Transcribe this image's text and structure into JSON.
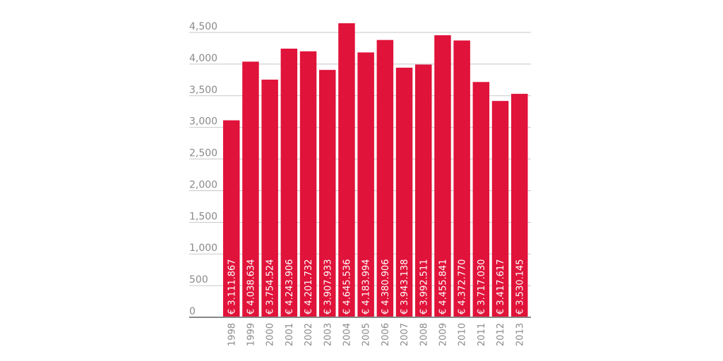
{
  "chart_data": {
    "type": "bar",
    "categories": [
      "1998",
      "1999",
      "2000",
      "2001",
      "2002",
      "2003",
      "2004",
      "2005",
      "2006",
      "2007",
      "2008",
      "2009",
      "2010",
      "2011",
      "2012",
      "2013"
    ],
    "values": [
      3111.867,
      4038.634,
      3754.524,
      4243.906,
      4201.732,
      3907.933,
      4645.536,
      4183.994,
      4380.906,
      3943.138,
      3992.511,
      4455.841,
      4372.77,
      3717.03,
      3417.617,
      3530.145
    ],
    "data_labels": [
      "€ 3.111.867",
      "€ 4.038.634",
      "€ 3.754.524",
      "€ 4.243.906",
      "€ 4.201.732",
      "€ 3.907.933",
      "€ 4.645.536",
      "€ 4.183.994",
      "€ 4.380.906",
      "€ 3.943.138",
      "€ 3.992.511",
      "€ 4.455.841",
      "€ 4.372.770",
      "€ 3.717.030",
      "€ 3.417.617",
      "€ 3.530.145"
    ],
    "yticks": [
      0,
      500,
      1000,
      1500,
      2000,
      2500,
      3000,
      3500,
      4000,
      4500
    ],
    "ytick_labels": [
      "0",
      "500",
      "1,000",
      "1,500",
      "2,000",
      "2,500",
      "3,000",
      "3,500",
      "4,000",
      "4,500"
    ],
    "ylim": [
      0,
      4500
    ],
    "grid": true,
    "bar_color": "#e0133a",
    "title": "",
    "xlabel": "",
    "ylabel": ""
  }
}
